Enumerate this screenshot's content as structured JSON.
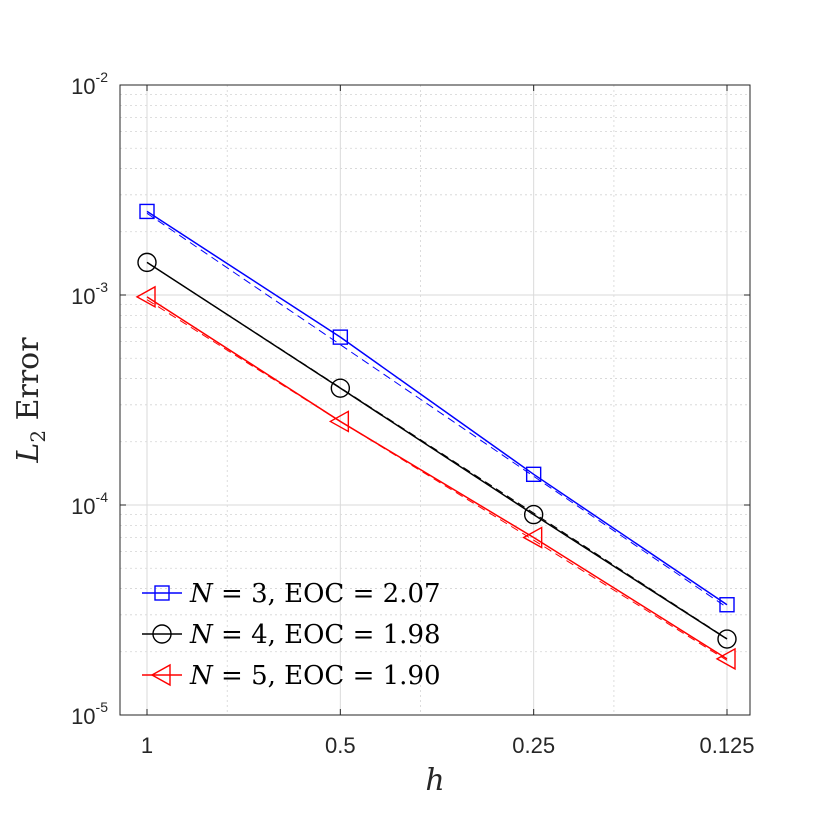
{
  "chart_data": {
    "type": "line",
    "xscale": "log-reversed",
    "yscale": "log",
    "xlabel": "h",
    "ylabel_main": "L",
    "ylabel_sub": "2",
    "ylabel_rest": " Error",
    "xlim": [
      1,
      0.125
    ],
    "ylim": [
      1e-05,
      0.01
    ],
    "grid": true,
    "minor_grid": true,
    "legend_position": "bottom-left",
    "x_ticks": [
      {
        "value": 1,
        "label": "1"
      },
      {
        "value": 0.5,
        "label": "0.5"
      },
      {
        "value": 0.25,
        "label": "0.25"
      },
      {
        "value": 0.125,
        "label": "0.125"
      }
    ],
    "y_ticks": [
      {
        "value": 1e-05,
        "base": "10",
        "exp": "-5"
      },
      {
        "value": 0.0001,
        "base": "10",
        "exp": "-4"
      },
      {
        "value": 0.001,
        "base": "10",
        "exp": "-3"
      },
      {
        "value": 0.01,
        "base": "10",
        "exp": "-2"
      }
    ],
    "x": [
      1,
      0.5,
      0.25,
      0.125
    ],
    "series": [
      {
        "name": "N = 3, EOC = 2.07",
        "legend_var": "N",
        "legend_rest": " = 3, EOC = 2.07",
        "color": "#0000ff",
        "marker": "square",
        "values": [
          0.0025,
          0.00063,
          0.00014,
          3.35e-05
        ],
        "fit_values": [
          0.00245,
          0.00058,
          0.000137,
          3.25e-05
        ]
      },
      {
        "name": "N = 4, EOC = 1.98",
        "legend_var": "N",
        "legend_rest": " = 4, EOC = 1.98",
        "color": "#000000",
        "marker": "circle",
        "values": [
          0.00143,
          0.00036,
          9e-05,
          2.3e-05
        ],
        "fit_values": [
          0.00143,
          0.000362,
          9.15e-05,
          2.31e-05
        ]
      },
      {
        "name": "N = 5, EOC = 1.90",
        "legend_var": "N",
        "legend_rest": " = 5, EOC = 1.90",
        "color": "#ff0000",
        "marker": "triangle-left",
        "values": [
          0.00098,
          0.00025,
          7e-05,
          1.85e-05
        ],
        "fit_values": [
          0.00095,
          0.00025,
          6.8e-05,
          1.82e-05
        ]
      }
    ]
  }
}
